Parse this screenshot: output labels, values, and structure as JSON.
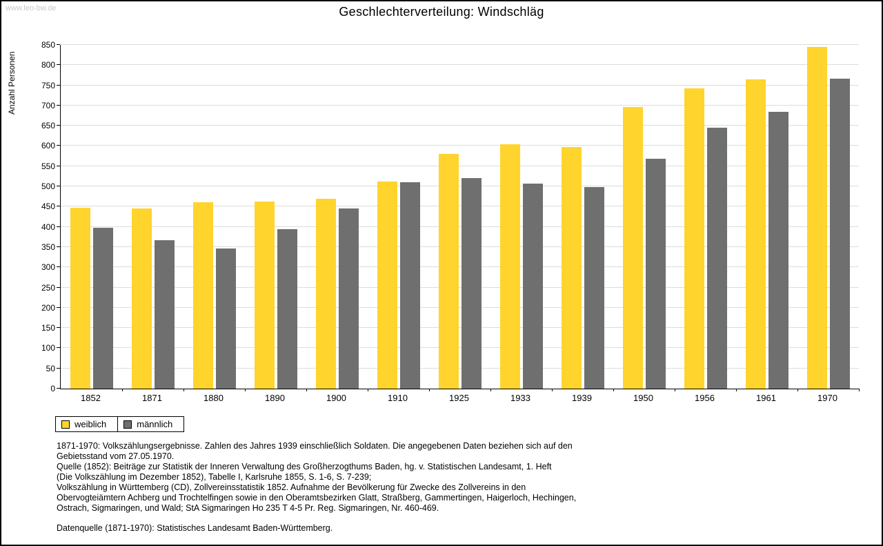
{
  "page": {
    "watermark": "www.leo-bw.de",
    "title": "Geschlechterverteilung: Windschläg"
  },
  "chart_data": {
    "type": "bar",
    "title": "Geschlechterverteilung: Windschläg",
    "xlabel": "",
    "ylabel": "Anzahl Personen",
    "ylim": [
      0,
      850
    ],
    "ytick_step": 50,
    "grid": true,
    "legend_position": "bottom-left",
    "categories": [
      "1852",
      "1871",
      "1880",
      "1890",
      "1900",
      "1910",
      "1925",
      "1933",
      "1939",
      "1950",
      "1956",
      "1961",
      "1970"
    ],
    "series": [
      {
        "name": "weiblich",
        "color": "#FFD42D",
        "values": [
          447,
          446,
          461,
          462,
          469,
          512,
          581,
          605,
          598,
          697,
          742,
          764,
          845
        ]
      },
      {
        "name": "männlich",
        "color": "#6F6F6F",
        "values": [
          397,
          367,
          346,
          394,
          445,
          510,
          521,
          507,
          498,
          569,
          645,
          684,
          766
        ]
      }
    ]
  },
  "footer": {
    "lines": [
      "1871-1970: Volkszählungsergebnisse. Zahlen des Jahres 1939 einschließlich Soldaten. Die angegebenen Daten beziehen sich auf den",
      "Gebietsstand vom 27.05.1970.",
      "Quelle (1852): Beiträge zur Statistik der Inneren Verwaltung des Großherzogthums Baden, hg. v. Statistischen Landesamt, 1. Heft",
      "(Die Volkszählung im Dezember 1852), Tabelle I, Karlsruhe 1855, S. 1-6, S. 7-239;",
      "Volkszählung in Württemberg (CD), Zollvereinsstatistik 1852. Aufnahme der Bevölkerung für Zwecke des Zollvereins in den",
      "Obervogteiämtern Achberg und Trochtelfingen sowie in den Oberamtsbezirken Glatt, Straßberg, Gammertingen, Haigerloch, Hechingen,",
      "Ostrach, Sigmaringen, und Wald; StA Sigmaringen Ho 235 T 4-5 Pr. Reg. Sigmaringen, Nr. 460-469.",
      "Datenquelle (1871-1970): Statistisches Landesamt Baden-Württemberg."
    ]
  }
}
